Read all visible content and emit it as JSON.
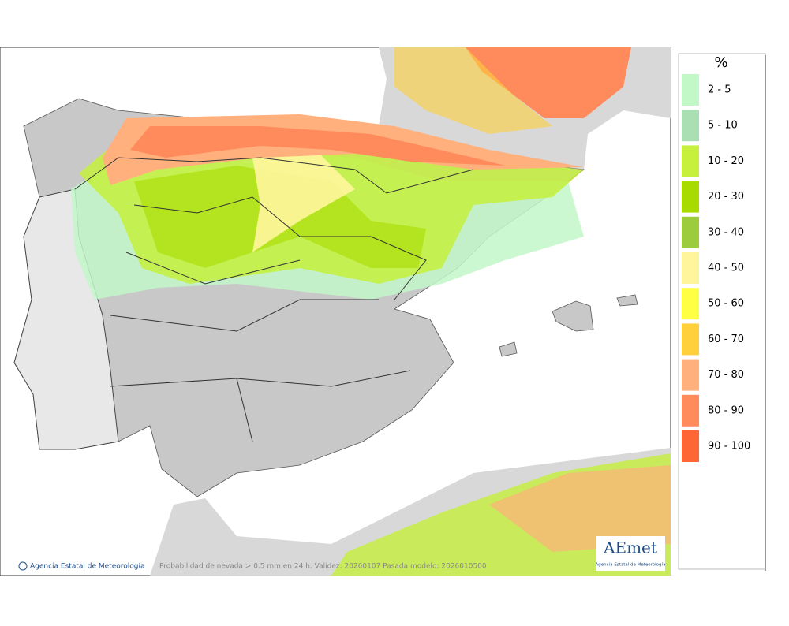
{
  "legend": {
    "unit": "%",
    "items": [
      {
        "label": "2 - 5",
        "color": "#c2f7c8"
      },
      {
        "label": "5 - 10",
        "color": "#a9dfb2"
      },
      {
        "label": "10 - 20",
        "color": "#c6f03c"
      },
      {
        "label": "20 - 30",
        "color": "#a8dc00"
      },
      {
        "label": "30 - 40",
        "color": "#9ccb3c"
      },
      {
        "label": "40 - 50",
        "color": "#fff59c"
      },
      {
        "label": "50 - 60",
        "color": "#ffff44"
      },
      {
        "label": "60 - 70",
        "color": "#ffd03c"
      },
      {
        "label": "70 - 80",
        "color": "#ffb07c"
      },
      {
        "label": "80 - 90",
        "color": "#ff8a5c"
      },
      {
        "label": "90 - 100",
        "color": "#ff6636"
      }
    ]
  },
  "footer": {
    "credit": "Agencia Estatal de Meteorología",
    "caption": "Probabilidad de nevada > 0.5 mm en 24 h. Validez: 20260107 Pasada modelo: 2026010500"
  },
  "logo": {
    "name": "AEmet",
    "subtitle": "Agencia Estatal de Meteorología"
  }
}
